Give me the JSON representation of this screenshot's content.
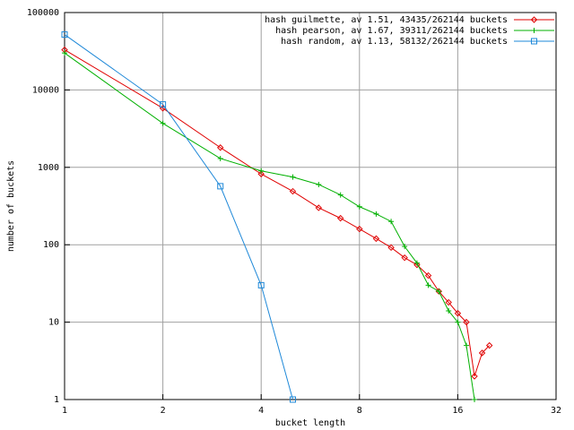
{
  "chart_data": {
    "type": "line",
    "xlabel": "bucket length",
    "ylabel": "number of buckets",
    "xscale": "log",
    "yscale": "log",
    "grid": true,
    "legend": "top-right",
    "xlim": [
      1,
      32
    ],
    "xticks": [
      1,
      2,
      4,
      8,
      16,
      32
    ],
    "ylim": [
      1,
      100000
    ],
    "yticks": [
      1,
      10,
      100,
      1000,
      10000,
      100000
    ],
    "series": [
      {
        "name": "hash guilmette, av 1.51, 43435/262144 buckets",
        "color": "#e00000",
        "marker": "diamond",
        "x": [
          1,
          2,
          3,
          4,
          5,
          6,
          7,
          8,
          9,
          10,
          11,
          12,
          13,
          14,
          15,
          16,
          17,
          18,
          19,
          20
        ],
        "values": [
          33000,
          5800,
          1800,
          820,
          490,
          300,
          220,
          160,
          120,
          92,
          68,
          55,
          40,
          25,
          18,
          13,
          10,
          2,
          4,
          5
        ]
      },
      {
        "name": "hash pearson, av 1.67, 39311/262144 buckets",
        "color": "#00b000",
        "marker": "plus",
        "x": [
          1,
          2,
          3,
          4,
          5,
          6,
          7,
          8,
          9,
          10,
          11,
          12,
          13,
          14,
          15,
          16,
          17,
          18
        ],
        "values": [
          30000,
          3700,
          1300,
          900,
          750,
          600,
          440,
          310,
          250,
          200,
          95,
          58,
          30,
          25,
          14,
          10,
          5,
          1
        ]
      },
      {
        "name": "hash random, av 1.13, 58132/262144 buckets",
        "color": "#1e88d8",
        "marker": "square",
        "x": [
          1,
          2,
          3,
          4,
          5
        ],
        "values": [
          52000,
          6500,
          570,
          30,
          1
        ]
      }
    ]
  }
}
